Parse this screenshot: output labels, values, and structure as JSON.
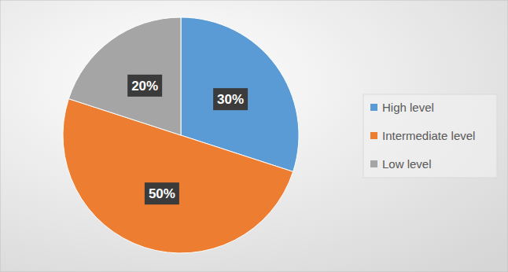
{
  "chart_data": {
    "type": "pie",
    "categories": [
      "High level",
      "Intermediate level",
      "Low level"
    ],
    "values": [
      30,
      50,
      20
    ],
    "colors": [
      "#5b9bd5",
      "#ed7d31",
      "#a5a5a5"
    ],
    "data_labels": true,
    "value_labels": [
      "30%",
      "50%",
      "20%"
    ],
    "legend": "right"
  }
}
